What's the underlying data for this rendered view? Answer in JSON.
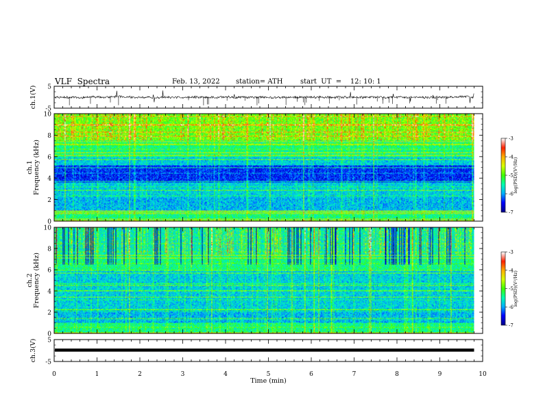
{
  "header": {
    "title": "VLF  Spectra",
    "date": "Feb. 13, 2022",
    "station": "station= ATH",
    "start": "start  UT  =    12: 10: 1"
  },
  "chart_data": [
    {
      "type": "line",
      "panel": "ch1-waveform",
      "xlabel": "",
      "ylabel": "ch.1(V)",
      "xlim": [
        0,
        10
      ],
      "ylim": [
        -5,
        5
      ],
      "yticks": [
        "5",
        "-5"
      ],
      "trace_end_min": 9.8,
      "trace_level_v": 0
    },
    {
      "type": "heatmap",
      "panel": "ch1-spectrogram",
      "ylabel": "ch.1\nFrequency  (kHz)",
      "ylabel_lines": [
        "ch.1",
        "Frequency  (kHz)"
      ],
      "xlim": [
        0,
        10
      ],
      "ylim": [
        0,
        10
      ],
      "yticks": [
        "0",
        "2",
        "4",
        "6",
        "8",
        "10"
      ],
      "data_end_min": 9.8,
      "colorbar": {
        "label": "log(PSD)(V²/Hz)",
        "range": [
          -7,
          -3
        ],
        "ticks": [
          "-3",
          "-4",
          "-5",
          "-6",
          "-7"
        ]
      }
    },
    {
      "type": "heatmap",
      "panel": "ch2-spectrogram",
      "ylabel": "ch.2\nFrequency  (kHz)",
      "ylabel_lines": [
        "ch.2",
        "Frequency  (kHz)"
      ],
      "xlim": [
        0,
        10
      ],
      "ylim": [
        0,
        10
      ],
      "yticks": [
        "0",
        "2",
        "4",
        "6",
        "8",
        "10"
      ],
      "data_end_min": 9.8,
      "colorbar": {
        "label": "log(PSD)(V²/Hz)",
        "range": [
          -7,
          -3
        ],
        "ticks": [
          "-3",
          "-4",
          "-5",
          "-6",
          "-7"
        ]
      }
    },
    {
      "type": "line",
      "panel": "ch3-waveform",
      "xlabel": "Time  (min)",
      "ylabel": "ch.3(V)",
      "xlim": [
        0,
        10
      ],
      "ylim": [
        -5,
        5
      ],
      "yticks": [
        "5",
        "-5"
      ],
      "xticks": [
        "0",
        "1",
        "2",
        "3",
        "4",
        "5",
        "6",
        "7",
        "8",
        "9",
        "10"
      ],
      "trace_end_min": 9.8,
      "trace_level_v": 0.2
    }
  ],
  "colors": {
    "jet_stops": [
      "#00008b",
      "#0000ff",
      "#00b0ff",
      "#00ffb0",
      "#40ff00",
      "#d8ff00",
      "#ffb000",
      "#ff2000",
      "#ffffff"
    ]
  }
}
